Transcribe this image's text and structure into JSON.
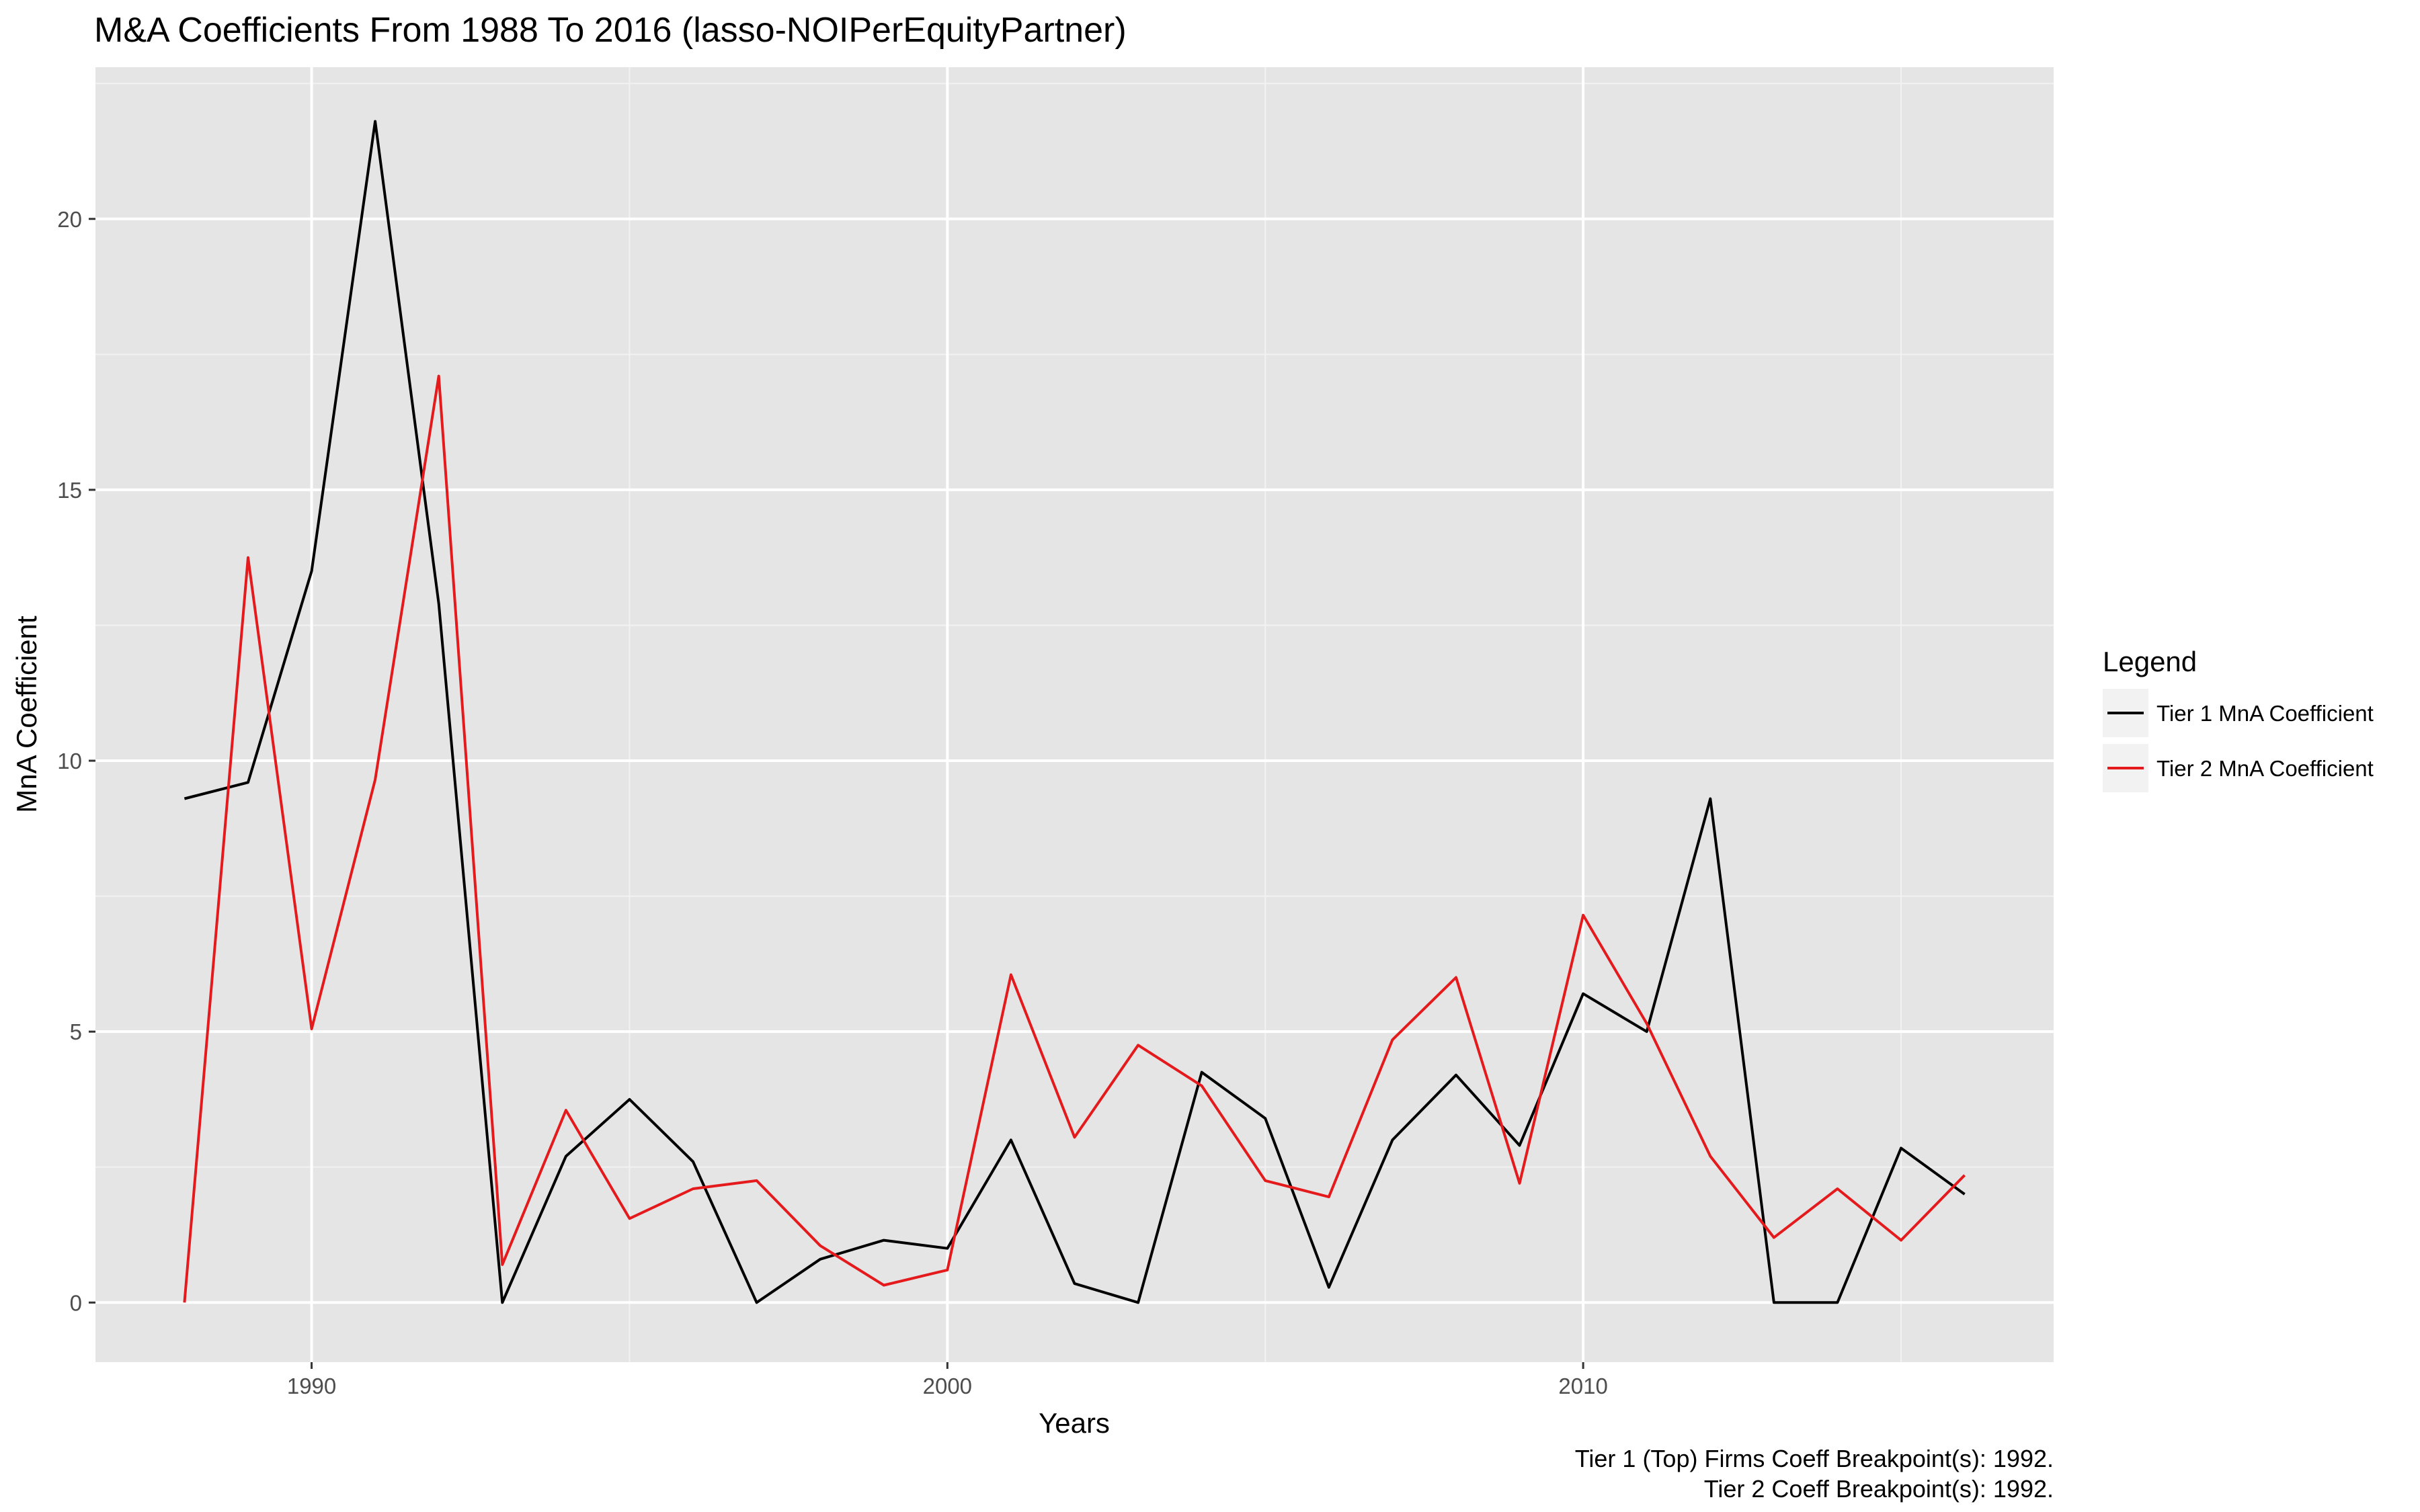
{
  "chart_data": {
    "type": "line",
    "title": "M&A Coefficients From 1988 To 2016 (lasso-NOIPerEquityPartner)",
    "xlabel": "Years",
    "ylabel": "MnA Coefficient",
    "xlim": [
      1986.6,
      2017.4
    ],
    "ylim": [
      -1.1,
      22.8
    ],
    "x_ticks": [
      1990,
      2000,
      2010
    ],
    "y_ticks": [
      0,
      5,
      10,
      15,
      20
    ],
    "grid": true,
    "legend": {
      "title": "Legend",
      "position": "right"
    },
    "x": [
      1988,
      1989,
      1990,
      1991,
      1992,
      1993,
      1994,
      1995,
      1996,
      1997,
      1998,
      1999,
      2000,
      2001,
      2002,
      2003,
      2004,
      2005,
      2006,
      2007,
      2008,
      2009,
      2010,
      2011,
      2012,
      2013,
      2014,
      2015,
      2016
    ],
    "series": [
      {
        "name": "Tier 1 MnA Coefficient",
        "color": "#000000",
        "values": [
          9.3,
          9.6,
          13.5,
          21.8,
          12.9,
          0.0,
          2.7,
          3.75,
          2.6,
          0.0,
          0.8,
          1.15,
          1.0,
          3.0,
          0.35,
          0.0,
          4.25,
          3.4,
          0.28,
          3.0,
          4.2,
          2.9,
          5.7,
          5.0,
          9.3,
          0.0,
          0.0,
          2.85,
          2.0
        ]
      },
      {
        "name": "Tier 2 MnA Coefficient",
        "color": "#e41a1c",
        "values": [
          0.0,
          13.75,
          5.05,
          9.65,
          17.1,
          0.7,
          3.55,
          1.55,
          2.1,
          2.25,
          1.05,
          0.32,
          0.6,
          6.05,
          3.05,
          4.75,
          4.0,
          2.25,
          1.95,
          4.85,
          6.0,
          2.2,
          7.15,
          5.15,
          2.7,
          1.2,
          2.1,
          1.15,
          2.35
        ]
      }
    ],
    "captions": [
      "Tier 1 (Top) Firms Coeff Breakpoint(s): 1992.",
      "Tier 2 Coeff Breakpoint(s): 1992."
    ]
  }
}
